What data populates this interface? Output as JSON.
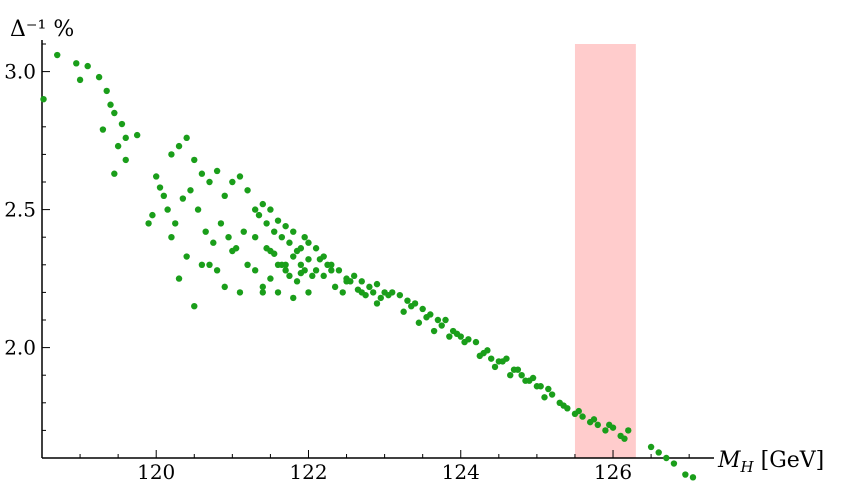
{
  "chart_data": {
    "type": "scatter",
    "ylabel": "Δ⁻¹ %",
    "xlabel": "M_H [GeV]",
    "xlabel_main": "M",
    "xlabel_sub": "H",
    "xlabel_unit": " [GeV]",
    "xlim": [
      118.5,
      127.3
    ],
    "ylim": [
      1.6,
      3.1
    ],
    "x_ticks": [
      120,
      122,
      124,
      126
    ],
    "x_tick_labels": [
      "120",
      "122",
      "124",
      "126"
    ],
    "y_ticks": [
      2.0,
      2.5,
      3.0
    ],
    "y_tick_labels": [
      "2.0",
      "2.5",
      "3.0"
    ],
    "grid": false,
    "point_color": "#1a9e1a",
    "band": {
      "x": [
        125.5,
        126.3
      ],
      "color": "#ffcccc"
    },
    "series": [
      {
        "x": [
          118.52,
          118.7,
          118.95,
          119.0,
          119.1,
          119.25,
          119.35,
          119.4,
          119.45,
          119.55,
          119.6,
          119.3,
          119.5,
          119.75,
          119.45,
          119.6,
          119.9,
          119.95,
          120.0,
          120.05,
          120.1,
          120.2,
          120.3,
          120.4,
          120.5,
          120.6,
          120.7,
          120.8,
          120.9,
          121.0,
          121.1,
          121.2,
          120.15,
          120.25,
          120.35,
          120.45,
          120.55,
          120.65,
          120.75,
          120.85,
          120.95,
          121.05,
          121.15,
          120.2,
          120.4,
          120.6,
          120.8,
          121.0,
          121.2,
          120.3,
          120.5,
          120.7,
          120.9,
          121.1,
          121.3,
          121.3,
          121.35,
          121.4,
          121.45,
          121.5,
          121.55,
          121.6,
          121.65,
          121.7,
          121.75,
          121.8,
          121.85,
          121.9,
          121.95,
          122.0,
          121.4,
          121.5,
          121.6,
          121.7,
          121.8,
          121.9,
          122.0,
          122.1,
          121.3,
          121.45,
          121.55,
          121.65,
          121.75,
          121.85,
          121.95,
          122.05,
          122.15,
          122.25,
          121.4,
          121.6,
          121.8,
          122.0,
          121.5,
          121.7,
          121.9,
          122.1,
          122.2,
          122.3,
          122.4,
          122.5,
          122.6,
          122.7,
          122.8,
          122.9,
          123.0,
          122.2,
          122.35,
          122.45,
          122.55,
          122.65,
          122.75,
          122.85,
          122.95,
          123.05,
          122.3,
          122.5,
          122.7,
          122.9,
          123.1,
          123.2,
          123.3,
          123.4,
          123.5,
          123.6,
          123.7,
          123.8,
          123.9,
          124.0,
          123.25,
          123.45,
          123.65,
          123.85,
          124.05,
          123.35,
          123.55,
          123.75,
          123.95,
          124.1,
          124.2,
          124.3,
          124.4,
          124.5,
          124.6,
          124.7,
          124.8,
          124.9,
          125.0,
          124.25,
          124.45,
          124.65,
          124.85,
          125.05,
          124.35,
          124.55,
          124.75,
          124.95,
          125.1,
          125.2,
          125.3,
          125.4,
          125.5,
          125.6,
          125.7,
          125.8,
          125.9,
          126.0,
          126.1,
          126.2,
          125.15,
          125.35,
          125.55,
          125.75,
          125.95,
          126.15,
          126.5,
          126.6,
          126.7,
          126.8,
          126.95,
          127.05
        ],
        "y": [
          2.9,
          3.06,
          3.03,
          2.97,
          3.02,
          2.98,
          2.93,
          2.88,
          2.85,
          2.81,
          2.76,
          2.79,
          2.73,
          2.77,
          2.63,
          2.68,
          2.45,
          2.48,
          2.62,
          2.58,
          2.55,
          2.7,
          2.73,
          2.76,
          2.68,
          2.63,
          2.6,
          2.64,
          2.55,
          2.6,
          2.62,
          2.57,
          2.5,
          2.45,
          2.54,
          2.57,
          2.5,
          2.42,
          2.38,
          2.45,
          2.4,
          2.36,
          2.42,
          2.4,
          2.33,
          2.3,
          2.28,
          2.35,
          2.3,
          2.25,
          2.15,
          2.3,
          2.22,
          2.2,
          2.28,
          2.5,
          2.48,
          2.52,
          2.45,
          2.5,
          2.42,
          2.46,
          2.4,
          2.44,
          2.38,
          2.42,
          2.35,
          2.36,
          2.4,
          2.38,
          2.2,
          2.25,
          2.3,
          2.28,
          2.33,
          2.3,
          2.32,
          2.28,
          2.4,
          2.36,
          2.34,
          2.3,
          2.26,
          2.24,
          2.28,
          2.26,
          2.32,
          2.3,
          2.22,
          2.2,
          2.18,
          2.2,
          2.35,
          2.3,
          2.27,
          2.36,
          2.33,
          2.3,
          2.28,
          2.25,
          2.26,
          2.24,
          2.22,
          2.23,
          2.2,
          2.26,
          2.22,
          2.2,
          2.24,
          2.21,
          2.19,
          2.2,
          2.18,
          2.19,
          2.28,
          2.24,
          2.2,
          2.16,
          2.2,
          2.19,
          2.17,
          2.16,
          2.14,
          2.12,
          2.1,
          2.1,
          2.06,
          2.04,
          2.13,
          2.09,
          2.06,
          2.04,
          2.02,
          2.15,
          2.11,
          2.08,
          2.05,
          2.03,
          2.02,
          1.98,
          1.96,
          1.95,
          1.96,
          1.92,
          1.9,
          1.88,
          1.86,
          1.97,
          1.93,
          1.9,
          1.88,
          1.86,
          1.99,
          1.95,
          1.92,
          1.89,
          1.82,
          1.83,
          1.8,
          1.78,
          1.76,
          1.75,
          1.73,
          1.72,
          1.7,
          1.71,
          1.68,
          1.7,
          1.85,
          1.79,
          1.77,
          1.74,
          1.72,
          1.67,
          1.64,
          1.62,
          1.6,
          1.58,
          1.54,
          1.53
        ]
      }
    ]
  }
}
